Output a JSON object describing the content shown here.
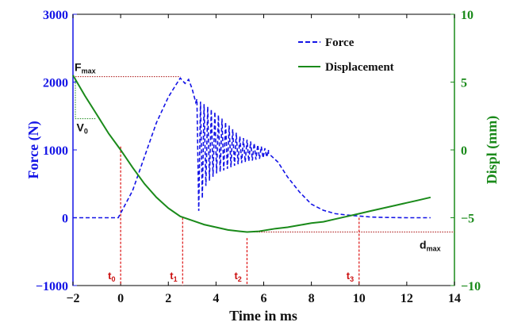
{
  "chart_data": {
    "type": "line",
    "xlabel": "Time in ms",
    "ylabel_left": "Force (N)",
    "ylabel_right": "Displ (mm)",
    "xlim": [
      -2,
      14
    ],
    "ylim_left": [
      -1000,
      3000
    ],
    "ylim_right": [
      -10,
      10
    ],
    "x_ticks": [
      "−2",
      "0",
      "2",
      "4",
      "6",
      "8",
      "10",
      "12",
      "14"
    ],
    "y_ticks_left": [
      "−1000",
      "0",
      "1000",
      "2000",
      "3000"
    ],
    "y_ticks_right": [
      "−10",
      "−5",
      "0",
      "5",
      "10"
    ],
    "legend_position": "top-right",
    "series": [
      {
        "name": "Force",
        "axis": "left",
        "style": "dashed",
        "color": "#1414e6",
        "points": [
          [
            -2,
            0
          ],
          [
            -0.1,
            0
          ],
          [
            0.5,
            400
          ],
          [
            1.0,
            900
          ],
          [
            1.5,
            1400
          ],
          [
            2.0,
            1780
          ],
          [
            2.3,
            1950
          ],
          [
            2.5,
            2060
          ],
          [
            2.7,
            1980
          ],
          [
            2.85,
            2040
          ],
          [
            3.0,
            1900
          ],
          [
            3.15,
            1700
          ]
        ],
        "oscillation": {
          "start": 3.2,
          "end": 6.2,
          "envelope_upper": [
            [
              3.2,
              1750
            ],
            [
              4.0,
              1550
            ],
            [
              5.0,
              1200
            ],
            [
              6.2,
              1000
            ]
          ],
          "envelope_lower": [
            [
              3.2,
              10
            ],
            [
              3.6,
              500
            ],
            [
              4.0,
              650
            ],
            [
              5.0,
              800
            ],
            [
              6.2,
              900
            ]
          ]
        },
        "tail": [
          [
            6.2,
            950
          ],
          [
            6.6,
            820
          ],
          [
            7.0,
            600
          ],
          [
            7.5,
            380
          ],
          [
            8.0,
            200
          ],
          [
            8.5,
            110
          ],
          [
            9.0,
            60
          ],
          [
            9.5,
            40
          ],
          [
            10.0,
            25
          ],
          [
            10.5,
            10
          ],
          [
            11.0,
            5
          ],
          [
            12.0,
            0
          ],
          [
            13.0,
            0
          ]
        ]
      },
      {
        "name": "Displacement",
        "axis": "right",
        "style": "solid",
        "color": "#1a8a1a",
        "points": [
          [
            -2,
            5.5
          ],
          [
            -1.5,
            4.0
          ],
          [
            -1.0,
            2.6
          ],
          [
            -0.5,
            1.2
          ],
          [
            0,
            0
          ],
          [
            0.5,
            -1.3
          ],
          [
            1.0,
            -2.5
          ],
          [
            1.5,
            -3.5
          ],
          [
            2.0,
            -4.3
          ],
          [
            2.5,
            -4.9
          ],
          [
            3.0,
            -5.2
          ],
          [
            3.5,
            -5.5
          ],
          [
            4.0,
            -5.7
          ],
          [
            4.5,
            -5.9
          ],
          [
            5.0,
            -6.0
          ],
          [
            5.3,
            -6.05
          ],
          [
            5.8,
            -6.0
          ],
          [
            6.5,
            -5.8
          ],
          [
            7.0,
            -5.7
          ],
          [
            7.5,
            -5.55
          ],
          [
            8.0,
            -5.4
          ],
          [
            8.5,
            -5.3
          ],
          [
            9.0,
            -5.1
          ],
          [
            9.5,
            -4.9
          ],
          [
            10.0,
            -4.7
          ],
          [
            10.5,
            -4.5
          ],
          [
            11.0,
            -4.3
          ],
          [
            11.5,
            -4.1
          ],
          [
            12.0,
            -3.9
          ],
          [
            12.5,
            -3.7
          ],
          [
            13.0,
            -3.5
          ]
        ]
      }
    ],
    "annotations": {
      "fmax": {
        "label_main": "F",
        "label_sub": "max",
        "value": 2080,
        "x_end": 2.5
      },
      "v0": {
        "label_main": "V",
        "label_sub": "0"
      },
      "dmax": {
        "label_main": "d",
        "label_sub": "max",
        "value": -6.05
      },
      "time_markers": [
        {
          "label_main": "t",
          "label_sub": "0",
          "x": 0.0,
          "top_left": 1050
        },
        {
          "label_main": "t",
          "label_sub": "1",
          "x": 2.6,
          "top_left": 0
        },
        {
          "label_main": "t",
          "label_sub": "2",
          "x": 5.3,
          "top_left": -300
        },
        {
          "label_main": "t",
          "label_sub": "3",
          "x": 10.0,
          "top_left": 0
        }
      ]
    }
  }
}
